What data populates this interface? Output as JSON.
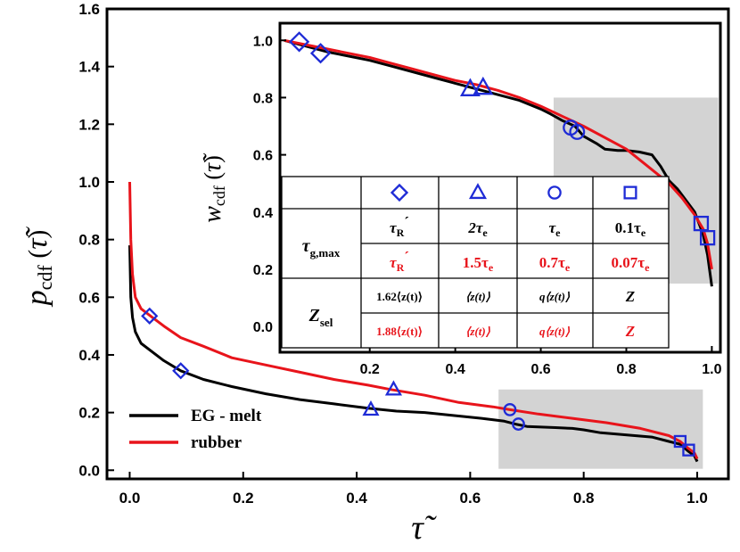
{
  "chart_data": [
    {
      "type": "line",
      "name": "main",
      "xlabel": "τ̃",
      "ylabel": "p_cdf(τ̃)",
      "xlim": [
        -0.04,
        1.055
      ],
      "ylim": [
        -0.03,
        1.6
      ],
      "x_ticks": [
        "0.0",
        "0.2",
        "0.4",
        "0.6",
        "0.8",
        "1.0"
      ],
      "x_tick_values": [
        0,
        0.2,
        0.4,
        0.6,
        0.8,
        1.0
      ],
      "y_ticks": [
        "0.0",
        "0.2",
        "0.4",
        "0.6",
        "0.8",
        "1.0",
        "1.2",
        "1.4",
        "1.6"
      ],
      "y_tick_values": [
        0,
        0.2,
        0.4,
        0.6,
        0.8,
        1.0,
        1.2,
        1.4,
        1.6
      ],
      "shaded_region": {
        "x": [
          0.65,
          1.01
        ],
        "y": [
          0.005,
          0.28
        ]
      },
      "series": [
        {
          "name": "EG - melt",
          "color": "#000000",
          "x": [
            0.0,
            0.002,
            0.005,
            0.01,
            0.02,
            0.04,
            0.06,
            0.09,
            0.13,
            0.18,
            0.24,
            0.3,
            0.36,
            0.42,
            0.47,
            0.52,
            0.57,
            0.62,
            0.66,
            0.68,
            0.7,
            0.72,
            0.75,
            0.78,
            0.8,
            0.83,
            0.86,
            0.89,
            0.92,
            0.95,
            0.97,
            0.985,
            0.995,
            1.0
          ],
          "y": [
            0.78,
            0.6,
            0.53,
            0.48,
            0.44,
            0.41,
            0.38,
            0.345,
            0.315,
            0.29,
            0.265,
            0.245,
            0.23,
            0.215,
            0.205,
            0.2,
            0.19,
            0.18,
            0.17,
            0.16,
            0.152,
            0.15,
            0.148,
            0.145,
            0.14,
            0.13,
            0.125,
            0.12,
            0.115,
            0.1,
            0.09,
            0.065,
            0.05,
            0.03
          ]
        },
        {
          "name": "rubber",
          "color": "#e8141b",
          "x": [
            0.0,
            0.002,
            0.005,
            0.01,
            0.02,
            0.04,
            0.06,
            0.09,
            0.13,
            0.18,
            0.24,
            0.3,
            0.36,
            0.42,
            0.46,
            0.52,
            0.58,
            0.64,
            0.67,
            0.72,
            0.78,
            0.84,
            0.9,
            0.95,
            0.97,
            0.985,
            0.995,
            1.0
          ],
          "y": [
            1.0,
            0.8,
            0.68,
            0.6,
            0.56,
            0.53,
            0.5,
            0.46,
            0.43,
            0.39,
            0.365,
            0.34,
            0.315,
            0.295,
            0.28,
            0.26,
            0.235,
            0.22,
            0.21,
            0.195,
            0.18,
            0.165,
            0.145,
            0.12,
            0.1,
            0.075,
            0.06,
            0.04
          ]
        }
      ],
      "markers": [
        {
          "shape": "diamond",
          "points": [
            [
              0.035,
              0.535
            ],
            [
              0.09,
              0.345
            ]
          ]
        },
        {
          "shape": "triangle",
          "points": [
            [
              0.425,
              0.21
            ],
            [
              0.465,
              0.28
            ]
          ]
        },
        {
          "shape": "circle",
          "points": [
            [
              0.67,
              0.21
            ],
            [
              0.685,
              0.16
            ]
          ]
        },
        {
          "shape": "square",
          "points": [
            [
              0.97,
              0.1
            ],
            [
              0.985,
              0.07
            ]
          ]
        }
      ],
      "legend": {
        "position": "bottom-left",
        "entries": [
          "EG - melt",
          "rubber"
        ]
      }
    },
    {
      "type": "line",
      "name": "inset",
      "ylabel": "w_cdf(τ̃)",
      "xlim": [
        -0.01,
        1.02
      ],
      "ylim": [
        -0.09,
        1.06
      ],
      "x_ticks": [
        "0.2",
        "0.4",
        "0.6",
        "0.8",
        "1.0"
      ],
      "x_tick_values": [
        0.2,
        0.4,
        0.6,
        0.8,
        1.0
      ],
      "y_ticks": [
        "0.0",
        "0.2",
        "0.4",
        "0.6",
        "0.8",
        "1.0"
      ],
      "y_tick_values": [
        0,
        0.2,
        0.4,
        0.6,
        0.8,
        1.0
      ],
      "shaded_region": {
        "x": [
          0.63,
          1.015
        ],
        "y": [
          0.15,
          0.8
        ]
      },
      "series": [
        {
          "name": "EG - melt",
          "color": "#000000",
          "x": [
            0.0,
            0.05,
            0.1,
            0.15,
            0.2,
            0.25,
            0.3,
            0.35,
            0.4,
            0.45,
            0.5,
            0.55,
            0.6,
            0.62,
            0.65,
            0.68,
            0.7,
            0.73,
            0.75,
            0.78,
            0.8,
            0.83,
            0.86,
            0.88,
            0.9,
            0.92,
            0.94,
            0.96,
            0.98,
            0.99,
            1.0
          ],
          "y": [
            1.0,
            0.98,
            0.96,
            0.945,
            0.93,
            0.91,
            0.89,
            0.87,
            0.85,
            0.83,
            0.81,
            0.79,
            0.76,
            0.745,
            0.72,
            0.7,
            0.665,
            0.64,
            0.62,
            0.615,
            0.615,
            0.61,
            0.6,
            0.56,
            0.51,
            0.48,
            0.44,
            0.4,
            0.32,
            0.25,
            0.14
          ]
        },
        {
          "name": "rubber",
          "color": "#e8141b",
          "x": [
            0.0,
            0.05,
            0.1,
            0.15,
            0.2,
            0.25,
            0.3,
            0.35,
            0.4,
            0.45,
            0.5,
            0.55,
            0.6,
            0.65,
            0.7,
            0.75,
            0.8,
            0.85,
            0.9,
            0.93,
            0.96,
            0.98,
            0.99,
            1.0
          ],
          "y": [
            1.0,
            0.985,
            0.97,
            0.955,
            0.94,
            0.92,
            0.9,
            0.88,
            0.86,
            0.845,
            0.825,
            0.8,
            0.77,
            0.735,
            0.7,
            0.66,
            0.62,
            0.56,
            0.5,
            0.45,
            0.39,
            0.34,
            0.29,
            0.2
          ]
        }
      ],
      "markers": [
        {
          "shape": "diamond",
          "points": [
            [
              0.035,
              0.995
            ],
            [
              0.085,
              0.955
            ]
          ]
        },
        {
          "shape": "triangle",
          "points": [
            [
              0.435,
              0.83
            ],
            [
              0.465,
              0.835
            ]
          ]
        },
        {
          "shape": "circle",
          "points": [
            [
              0.67,
              0.695
            ],
            [
              0.685,
              0.68
            ]
          ]
        },
        {
          "shape": "square",
          "points": [
            [
              0.975,
              0.36
            ],
            [
              0.99,
              0.31
            ]
          ]
        }
      ]
    }
  ],
  "table": {
    "marker_header": [
      "diamond",
      "triangle",
      "circle",
      "square"
    ],
    "tau_label": "τ",
    "tau_sub": "g,max",
    "z_label": "Z",
    "z_sub": "sel",
    "tau_melt": [
      [
        "τ",
        "R",
        "´",
        ""
      ],
      [
        "2τ",
        "e",
        "",
        ""
      ],
      [
        "τ",
        "e",
        "",
        ""
      ],
      [
        "0.1τ",
        "e",
        "",
        ""
      ]
    ],
    "tau_rubber": [
      [
        "τ",
        "R",
        "´",
        ""
      ],
      [
        "1.5τ",
        "e",
        "",
        ""
      ],
      [
        "0.7τ",
        "e",
        "",
        ""
      ],
      [
        "0.07τ",
        "e",
        "",
        ""
      ]
    ],
    "z_melt": [
      "1.62⟨z(t)⟩",
      "⟨z(t)⟩",
      "q⟨z(t)⟩",
      "Z"
    ],
    "z_rubber": [
      "1.88⟨z(t)⟩",
      "⟨z(t)⟩",
      "q⟨z(t)⟩",
      "Z"
    ]
  },
  "colors": {
    "melt": "#000000",
    "rubber": "#e8141b",
    "marker": "#1e2bd6",
    "shade": "#d3d3d3"
  }
}
